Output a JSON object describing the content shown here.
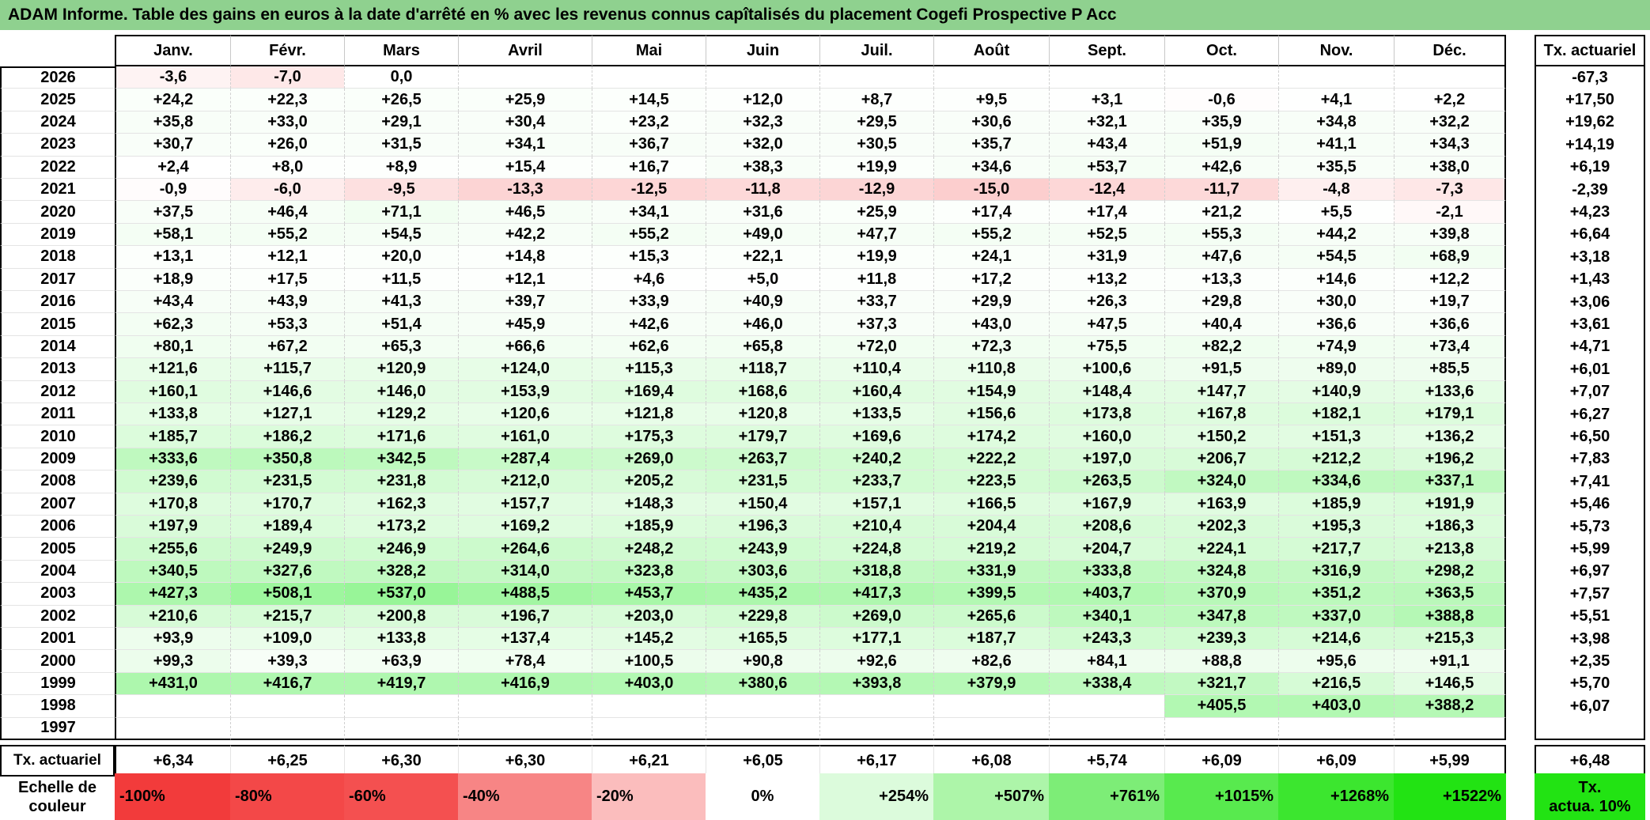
{
  "title": "ADAM Informe. Table des gains en euros à la date d'arrêté en % avec les revenus connus capîtalisés du placement Cogefi Prospective P Acc",
  "headers": [
    "Janv.",
    "Févr.",
    "Mars",
    "Avril",
    "Mai",
    "Juin",
    "Juil.",
    "Août",
    "Sept.",
    "Oct.",
    "Nov.",
    "Déc."
  ],
  "rate_header": "Tx. actuariel",
  "rows": [
    {
      "year": "2026",
      "cells": [
        "-3,6",
        "-7,0",
        "0,0",
        "",
        "",
        "",
        "",
        "",
        "",
        "",
        "",
        ""
      ],
      "rate": "-67,3"
    },
    {
      "year": "2025",
      "cells": [
        "+24,2",
        "+22,3",
        "+26,5",
        "+25,9",
        "+14,5",
        "+12,0",
        "+8,7",
        "+9,5",
        "+3,1",
        "-0,6",
        "+4,1",
        "+2,2"
      ],
      "rate": "+17,50"
    },
    {
      "year": "2024",
      "cells": [
        "+35,8",
        "+33,0",
        "+29,1",
        "+30,4",
        "+23,2",
        "+32,3",
        "+29,5",
        "+30,6",
        "+32,1",
        "+35,9",
        "+34,8",
        "+32,2"
      ],
      "rate": "+19,62"
    },
    {
      "year": "2023",
      "cells": [
        "+30,7",
        "+26,0",
        "+31,5",
        "+34,1",
        "+36,7",
        "+32,0",
        "+30,5",
        "+35,7",
        "+43,4",
        "+51,9",
        "+41,1",
        "+34,3"
      ],
      "rate": "+14,19"
    },
    {
      "year": "2022",
      "cells": [
        "+2,4",
        "+8,0",
        "+8,9",
        "+15,4",
        "+16,7",
        "+38,3",
        "+19,9",
        "+34,6",
        "+53,7",
        "+42,6",
        "+35,5",
        "+38,0"
      ],
      "rate": "+6,19"
    },
    {
      "year": "2021",
      "cells": [
        "-0,9",
        "-6,0",
        "-9,5",
        "-13,3",
        "-12,5",
        "-11,8",
        "-12,9",
        "-15,0",
        "-12,4",
        "-11,7",
        "-4,8",
        "-7,3"
      ],
      "rate": "-2,39"
    },
    {
      "year": "2020",
      "cells": [
        "+37,5",
        "+46,4",
        "+71,1",
        "+46,5",
        "+34,1",
        "+31,6",
        "+25,9",
        "+17,4",
        "+17,4",
        "+21,2",
        "+5,5",
        "-2,1"
      ],
      "rate": "+4,23"
    },
    {
      "year": "2019",
      "cells": [
        "+58,1",
        "+55,2",
        "+54,5",
        "+42,2",
        "+55,2",
        "+49,0",
        "+47,7",
        "+55,2",
        "+52,5",
        "+55,3",
        "+44,2",
        "+39,8"
      ],
      "rate": "+6,64"
    },
    {
      "year": "2018",
      "cells": [
        "+13,1",
        "+12,1",
        "+20,0",
        "+14,8",
        "+15,3",
        "+22,1",
        "+19,9",
        "+24,1",
        "+31,9",
        "+47,6",
        "+54,5",
        "+68,9"
      ],
      "rate": "+3,18"
    },
    {
      "year": "2017",
      "cells": [
        "+18,9",
        "+17,5",
        "+11,5",
        "+12,1",
        "+4,6",
        "+5,0",
        "+11,8",
        "+17,2",
        "+13,2",
        "+13,3",
        "+14,6",
        "+12,2"
      ],
      "rate": "+1,43"
    },
    {
      "year": "2016",
      "cells": [
        "+43,4",
        "+43,9",
        "+41,3",
        "+39,7",
        "+33,9",
        "+40,9",
        "+33,7",
        "+29,9",
        "+26,3",
        "+29,8",
        "+30,0",
        "+19,7"
      ],
      "rate": "+3,06"
    },
    {
      "year": "2015",
      "cells": [
        "+62,3",
        "+53,3",
        "+51,4",
        "+45,9",
        "+42,6",
        "+46,0",
        "+37,3",
        "+43,0",
        "+47,5",
        "+40,4",
        "+36,6",
        "+36,6"
      ],
      "rate": "+3,61"
    },
    {
      "year": "2014",
      "cells": [
        "+80,1",
        "+67,2",
        "+65,3",
        "+66,6",
        "+62,6",
        "+65,8",
        "+72,0",
        "+72,3",
        "+75,5",
        "+82,2",
        "+74,9",
        "+73,4"
      ],
      "rate": "+4,71"
    },
    {
      "year": "2013",
      "cells": [
        "+121,6",
        "+115,7",
        "+120,9",
        "+124,0",
        "+115,3",
        "+118,7",
        "+110,4",
        "+110,8",
        "+100,6",
        "+91,5",
        "+89,0",
        "+85,5"
      ],
      "rate": "+6,01"
    },
    {
      "year": "2012",
      "cells": [
        "+160,1",
        "+146,6",
        "+146,0",
        "+153,9",
        "+169,4",
        "+168,6",
        "+160,4",
        "+154,9",
        "+148,4",
        "+147,7",
        "+140,9",
        "+133,6"
      ],
      "rate": "+7,07"
    },
    {
      "year": "2011",
      "cells": [
        "+133,8",
        "+127,1",
        "+129,2",
        "+120,6",
        "+121,8",
        "+120,8",
        "+133,5",
        "+156,6",
        "+173,8",
        "+167,8",
        "+182,1",
        "+179,1"
      ],
      "rate": "+6,27"
    },
    {
      "year": "2010",
      "cells": [
        "+185,7",
        "+186,2",
        "+171,6",
        "+161,0",
        "+175,3",
        "+179,7",
        "+169,6",
        "+174,2",
        "+160,0",
        "+150,2",
        "+151,3",
        "+136,2"
      ],
      "rate": "+6,50"
    },
    {
      "year": "2009",
      "cells": [
        "+333,6",
        "+350,8",
        "+342,5",
        "+287,4",
        "+269,0",
        "+263,7",
        "+240,2",
        "+222,2",
        "+197,0",
        "+206,7",
        "+212,2",
        "+196,2"
      ],
      "rate": "+7,83"
    },
    {
      "year": "2008",
      "cells": [
        "+239,6",
        "+231,5",
        "+231,8",
        "+212,0",
        "+205,2",
        "+231,5",
        "+233,7",
        "+223,5",
        "+263,5",
        "+324,0",
        "+334,6",
        "+337,1"
      ],
      "rate": "+7,41"
    },
    {
      "year": "2007",
      "cells": [
        "+170,8",
        "+170,7",
        "+162,3",
        "+157,7",
        "+148,3",
        "+150,4",
        "+157,1",
        "+166,5",
        "+167,9",
        "+163,9",
        "+185,9",
        "+191,9"
      ],
      "rate": "+5,46"
    },
    {
      "year": "2006",
      "cells": [
        "+197,9",
        "+189,4",
        "+173,2",
        "+169,2",
        "+185,9",
        "+196,3",
        "+210,4",
        "+204,4",
        "+208,6",
        "+202,3",
        "+195,3",
        "+186,3"
      ],
      "rate": "+5,73"
    },
    {
      "year": "2005",
      "cells": [
        "+255,6",
        "+249,9",
        "+246,9",
        "+264,6",
        "+248,2",
        "+243,9",
        "+224,8",
        "+219,2",
        "+204,7",
        "+224,1",
        "+217,7",
        "+213,8"
      ],
      "rate": "+5,99"
    },
    {
      "year": "2004",
      "cells": [
        "+340,5",
        "+327,6",
        "+328,2",
        "+314,0",
        "+323,8",
        "+303,6",
        "+318,8",
        "+331,9",
        "+333,8",
        "+324,8",
        "+316,9",
        "+298,2"
      ],
      "rate": "+6,97"
    },
    {
      "year": "2003",
      "cells": [
        "+427,3",
        "+508,1",
        "+537,0",
        "+488,5",
        "+453,7",
        "+435,2",
        "+417,3",
        "+399,5",
        "+403,7",
        "+370,9",
        "+351,2",
        "+363,5"
      ],
      "rate": "+7,57"
    },
    {
      "year": "2002",
      "cells": [
        "+210,6",
        "+215,7",
        "+200,8",
        "+196,7",
        "+203,0",
        "+229,8",
        "+269,0",
        "+265,6",
        "+340,1",
        "+347,8",
        "+337,0",
        "+388,8"
      ],
      "rate": "+5,51"
    },
    {
      "year": "2001",
      "cells": [
        "+93,9",
        "+109,0",
        "+133,8",
        "+137,4",
        "+145,2",
        "+165,5",
        "+177,1",
        "+187,7",
        "+243,3",
        "+239,3",
        "+214,6",
        "+215,3"
      ],
      "rate": "+3,98"
    },
    {
      "year": "2000",
      "cells": [
        "+99,3",
        "+39,3",
        "+63,9",
        "+78,4",
        "+100,5",
        "+90,8",
        "+92,6",
        "+82,6",
        "+84,1",
        "+88,8",
        "+95,6",
        "+91,1"
      ],
      "rate": "+2,35"
    },
    {
      "year": "1999",
      "cells": [
        "+431,0",
        "+416,7",
        "+419,7",
        "+416,9",
        "+403,0",
        "+380,6",
        "+393,8",
        "+379,9",
        "+338,4",
        "+321,7",
        "+216,5",
        "+146,5"
      ],
      "rate": "+5,70"
    },
    {
      "year": "1998",
      "cells": [
        "",
        "",
        "",
        "",
        "",
        "",
        "",
        "",
        "",
        "+405,5",
        "+403,0",
        "+388,2"
      ],
      "rate": "+6,07"
    },
    {
      "year": "1997",
      "cells": [
        "",
        "",
        "",
        "",
        "",
        "",
        "",
        "",
        "",
        "",
        "",
        ""
      ],
      "rate": ""
    }
  ],
  "summary": {
    "label": "Tx. actuariel",
    "cells": [
      "+6,34",
      "+6,25",
      "+6,30",
      "+6,30",
      "+6,21",
      "+6,05",
      "+6,17",
      "+6,08",
      "+5,74",
      "+6,09",
      "+6,09",
      "+5,99"
    ],
    "rate": "+6,48"
  },
  "scale": {
    "label_line1": "Echelle de",
    "label_line2": "couleur",
    "items": [
      {
        "text": "-100%",
        "color": "#f23b3b",
        "align": "left"
      },
      {
        "text": "-80%",
        "color": "#f34848",
        "align": "left"
      },
      {
        "text": "-60%",
        "color": "#f45050",
        "align": "left"
      },
      {
        "text": "-40%",
        "color": "#f78585",
        "align": "left"
      },
      {
        "text": "-20%",
        "color": "#fbbdbd",
        "align": "left"
      },
      {
        "text": "0%",
        "color": "#ffffff",
        "align": "center"
      },
      {
        "text": "+254%",
        "color": "#dcfbdc",
        "align": "right"
      },
      {
        "text": "+507%",
        "color": "#adf5a9",
        "align": "right"
      },
      {
        "text": "+761%",
        "color": "#7ded77",
        "align": "right"
      },
      {
        "text": "+1015%",
        "color": "#58ea4e",
        "align": "right"
      },
      {
        "text": "+1268%",
        "color": "#3ce62f",
        "align": "right"
      },
      {
        "text": "+1522%",
        "color": "#22e313",
        "align": "right"
      }
    ],
    "rate_line1": "Tx.",
    "rate_line2": "actua. 10%",
    "rate_color": "#22e313"
  },
  "colors": {
    "title_bg": "#8fd18f",
    "grid_line": "#c8c8c8",
    "border": "#000000"
  }
}
